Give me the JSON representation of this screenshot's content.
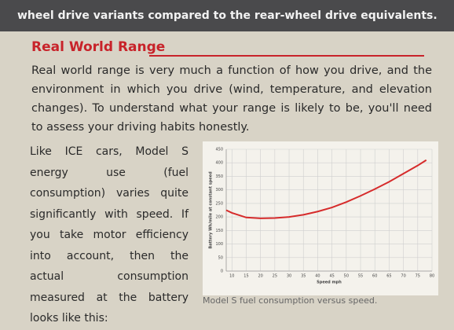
{
  "header": {
    "text": "wheel drive variants compared to the rear-wheel drive equivalents."
  },
  "section": {
    "title": "Real World Range",
    "intro": "Real world range is very much a function of how you drive, and the environment in which you drive (wind, temperature, and elevation changes). To understand what your range is likely to be, you'll need to assess your driving habits honestly.",
    "body": "Like ICE cars, Model S energy use (fuel consumption) varies quite significantly with speed. If you take motor efficiency into account, then the actual consumption measured at the battery looks like this:",
    "caption": "Model S fuel consumption versus speed."
  },
  "chart_data": {
    "type": "line",
    "xlabel": "Speed mph",
    "ylabel": "Battery Wh/mile at constant speed",
    "x": [
      8,
      10,
      15,
      20,
      25,
      30,
      35,
      40,
      45,
      50,
      55,
      60,
      65,
      70,
      75,
      78
    ],
    "values": [
      225,
      215,
      198,
      195,
      196,
      200,
      208,
      220,
      235,
      255,
      278,
      303,
      330,
      360,
      390,
      410
    ],
    "color": "#d62b2b",
    "xlim": [
      8,
      80
    ],
    "xticks": [
      10,
      15,
      20,
      25,
      30,
      35,
      40,
      45,
      50,
      55,
      60,
      65,
      70,
      75,
      80
    ],
    "ylim": [
      0,
      450
    ],
    "yticks": [
      0,
      50,
      100,
      150,
      200,
      250,
      300,
      350,
      400,
      450
    ],
    "grid": true
  }
}
